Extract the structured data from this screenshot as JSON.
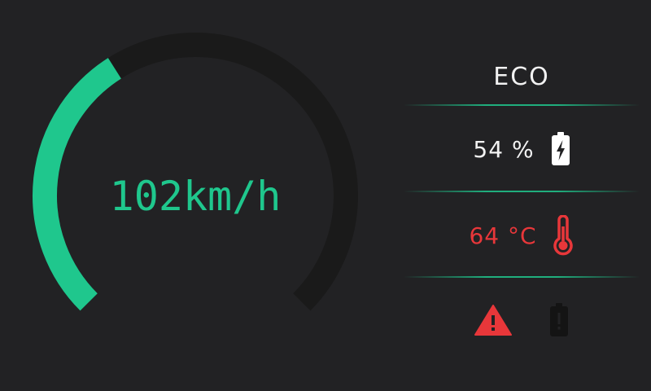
{
  "speedometer": {
    "speed_text": "102km/h",
    "fill_fraction": 0.38,
    "color_active": "#1fc78d",
    "color_track": "#1a1a1a",
    "color_text": "#1fc78d"
  },
  "status": {
    "mode_label": "ECO",
    "battery_text": "54 %",
    "battery_icon": "battery-charging-icon",
    "temperature_text": "64 °C",
    "temperature_icon": "thermometer-icon",
    "temperature_color": "#e8373a",
    "warning_icon": "warning-triangle-icon",
    "warning_color": "#e8373a",
    "battery_fault_icon": "battery-alert-icon",
    "divider_color": "#1fc78d"
  }
}
